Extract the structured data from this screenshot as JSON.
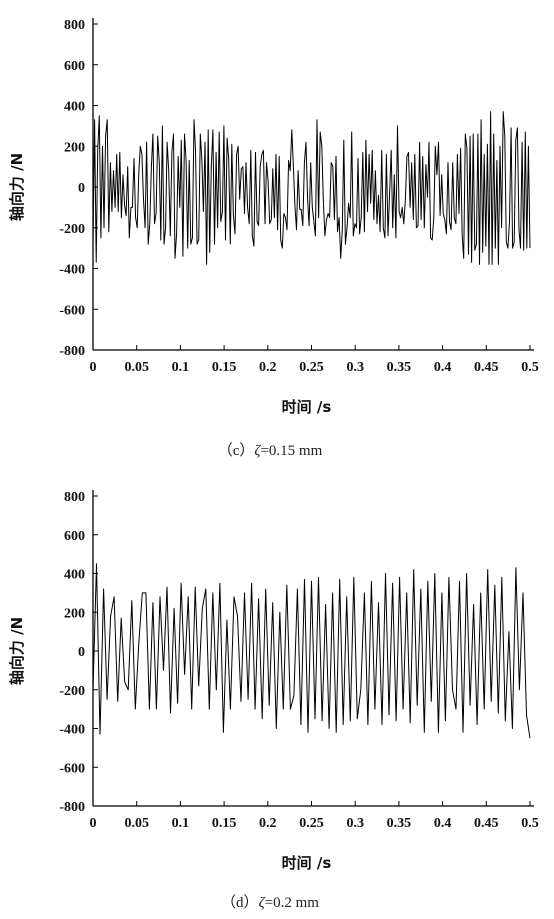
{
  "chart_data": [
    {
      "type": "line",
      "caption_prefix": "（c）",
      "caption_symbol": "ζ",
      "caption_value": "=0.15 mm",
      "xlabel": "时间 /s",
      "ylabel": "轴向力 /N",
      "xlim": [
        0,
        0.5
      ],
      "ylim": [
        -800,
        800
      ],
      "xticks": [
        "0",
        "0.05",
        "0.1",
        "0.15",
        "0.2",
        "0.25",
        "0.3",
        "0.35",
        "0.4",
        "0.45",
        "0.5"
      ],
      "yticks": [
        "800",
        "600",
        "400",
        "200",
        "0",
        "-200",
        "-400",
        "-600",
        "-800"
      ],
      "grid": false,
      "line_color": "#000000",
      "series": [
        {
          "x_start": 0,
          "x_end": 0.5,
          "values": [
            -280,
            330,
            -370,
            180,
            350,
            -250,
            200,
            -200,
            250,
            330,
            -220,
            120,
            -120,
            80,
            -100,
            160,
            -120,
            170,
            -150,
            60,
            -90,
            -140,
            100,
            -250,
            -100,
            -100,
            140,
            -150,
            -200,
            70,
            200,
            160,
            -60,
            -200,
            220,
            -280,
            -180,
            100,
            260,
            -180,
            -130,
            250,
            120,
            -260,
            300,
            -280,
            -200,
            220,
            80,
            -240,
            170,
            260,
            -350,
            -230,
            150,
            -100,
            230,
            -340,
            260,
            130,
            -300,
            130,
            -280,
            -250,
            330,
            180,
            -280,
            -260,
            260,
            130,
            -120,
            220,
            -380,
            280,
            -320,
            100,
            280,
            -280,
            170,
            -200,
            270,
            -170,
            -120,
            300,
            -260,
            240,
            140,
            -280,
            210,
            -140,
            -230,
            160,
            200,
            -60,
            90,
            100,
            -130,
            120,
            -100,
            -180,
            180,
            -240,
            -290,
            170,
            -170,
            -190,
            100,
            160,
            180,
            -180,
            120,
            30,
            -180,
            -160,
            90,
            -150,
            160,
            -210,
            150,
            -260,
            -300,
            -130,
            -150,
            -210,
            130,
            80,
            280,
            100,
            -90,
            -210,
            80,
            -110,
            -110,
            -190,
            120,
            220,
            -60,
            -190,
            120,
            -100,
            -170,
            -240,
            330,
            -150,
            270,
            200,
            -60,
            -240,
            -160,
            -130,
            -150,
            120,
            100,
            -160,
            150,
            -220,
            -150,
            -350,
            -210,
            230,
            -280,
            -200,
            -80,
            -150,
            270,
            -240,
            -180,
            -200,
            140,
            -230,
            -150,
            170,
            -220,
            230,
            -120,
            160,
            -80,
            180,
            -160,
            80,
            -180,
            -40,
            -220,
            180,
            -200,
            -250,
            160,
            -240,
            -30,
            180,
            -200,
            60,
            -250,
            300,
            -120,
            -150,
            -100,
            -180,
            -60,
            150,
            170,
            -100,
            120,
            -160,
            160,
            -200,
            -190,
            220,
            -160,
            150,
            -200,
            110,
            -50,
            220,
            -250,
            -260,
            -150,
            200,
            60,
            220,
            -140,
            60,
            -130,
            -160,
            -230,
            120,
            -170,
            -210,
            120,
            -150,
            -180,
            160,
            -130,
            190,
            -240,
            -350,
            260,
            190,
            -330,
            250,
            -370,
            260,
            -310,
            -280,
            260,
            -380,
            330,
            -320,
            160,
            -290,
            210,
            -380,
            370,
            -380,
            260,
            -300,
            130,
            -380,
            200,
            -200,
            370,
            250,
            -270,
            -300,
            -170,
            290,
            -300,
            -270,
            230,
            290,
            -210,
            -300,
            220,
            -310,
            270,
            -300,
            200,
            -300
          ]
        }
      ]
    },
    {
      "type": "line",
      "caption_prefix": "（d）",
      "caption_symbol": "ζ",
      "caption_value": "=0.2 mm",
      "xlabel": "时间 /s",
      "ylabel": "轴向力 /N",
      "xlim": [
        0,
        0.5
      ],
      "ylim": [
        -800,
        800
      ],
      "xticks": [
        "0",
        "0.05",
        "0.1",
        "0.15",
        "0.2",
        "0.25",
        "0.3",
        "0.35",
        "0.4",
        "0.45",
        "0.5"
      ],
      "yticks": [
        "800",
        "600",
        "400",
        "200",
        "0",
        "-200",
        "-400",
        "-600",
        "-800"
      ],
      "grid": false,
      "line_color": "#000000",
      "series": [
        {
          "x_start": 0,
          "x_end": 0.5,
          "values": [
            -200,
            450,
            -430,
            320,
            -250,
            180,
            280,
            -260,
            170,
            -160,
            -200,
            260,
            -300,
            40,
            300,
            300,
            -300,
            250,
            -300,
            280,
            -100,
            330,
            -320,
            220,
            -270,
            350,
            -120,
            280,
            -300,
            330,
            -180,
            220,
            320,
            -300,
            300,
            -200,
            350,
            -420,
            160,
            -300,
            280,
            180,
            -260,
            300,
            -250,
            350,
            -300,
            270,
            -350,
            320,
            -280,
            250,
            -400,
            200,
            -300,
            340,
            -300,
            -230,
            320,
            -380,
            370,
            -420,
            360,
            -350,
            380,
            -360,
            240,
            -400,
            300,
            -420,
            370,
            -380,
            280,
            -360,
            380,
            -350,
            -200,
            300,
            -380,
            360,
            -300,
            250,
            -380,
            400,
            -330,
            350,
            -360,
            380,
            -300,
            300,
            -370,
            420,
            -280,
            320,
            -420,
            360,
            -260,
            400,
            -420,
            300,
            -360,
            380,
            -200,
            -300,
            360,
            -420,
            400,
            -280,
            240,
            -380,
            300,
            -300,
            420,
            -260,
            340,
            -320,
            380,
            -360,
            100,
            -400,
            430,
            -200,
            300,
            -330,
            -450
          ]
        }
      ]
    }
  ]
}
